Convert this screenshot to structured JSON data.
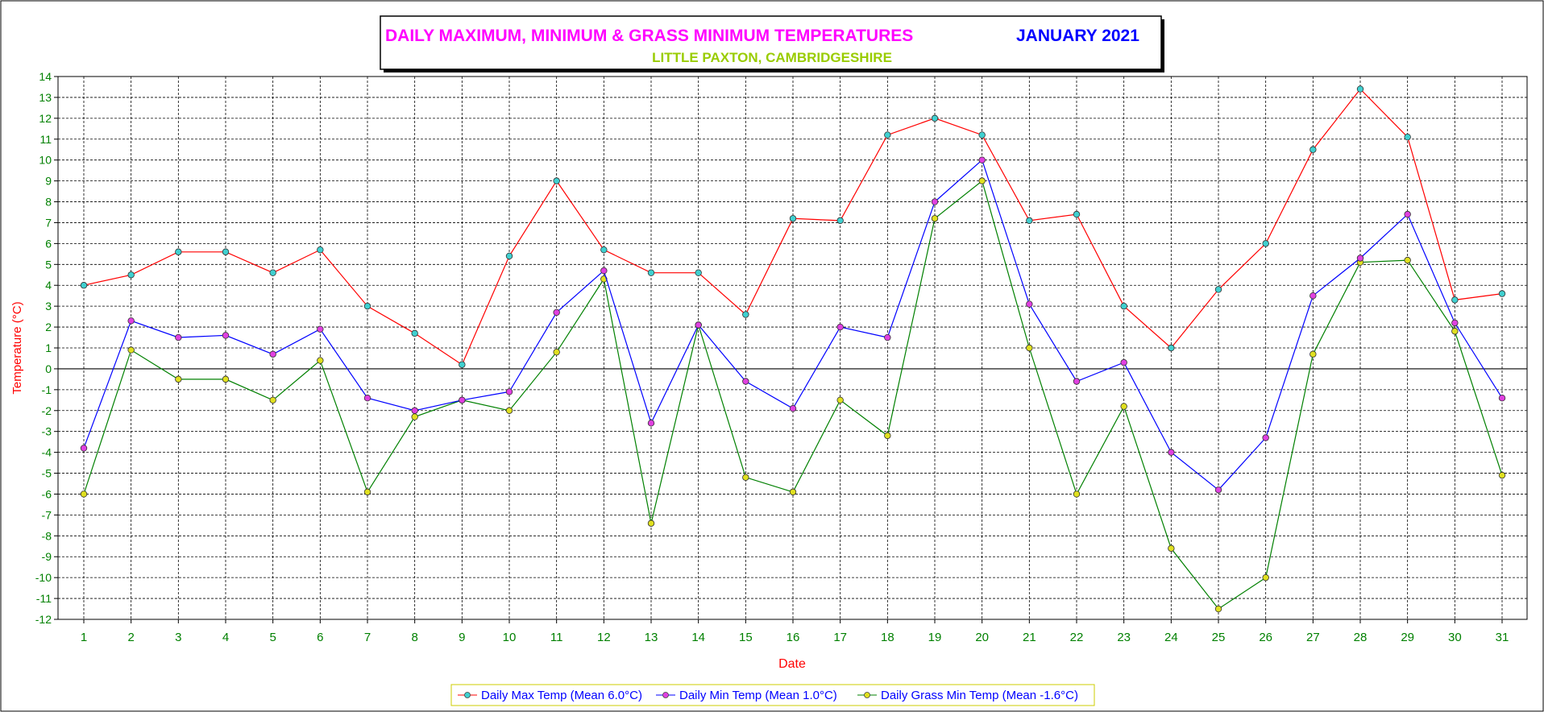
{
  "colors": {
    "max": "#ff0000",
    "min": "#0000ff",
    "grass": "#008000",
    "max_marker": "#40d0d0",
    "min_marker": "#e040e0",
    "grass_marker": "#e0e020",
    "title_main": "#ff00ff",
    "title_month": "#0000ff",
    "subtitle": "#99cc00",
    "tick_labels": "#008000",
    "axis_title": "#ff0000"
  },
  "chart_data": {
    "type": "line",
    "title": "DAILY MAXIMUM, MINIMUM & GRASS MINIMUM TEMPERATURES",
    "title_month": "JANUARY 2021",
    "subtitle": "LITTLE PAXTON, CAMBRIDGESHIRE",
    "xlabel": "Date",
    "ylabel": "Temperature (°C)",
    "ylim": [
      -12,
      14
    ],
    "grid": true,
    "legend_position": "bottom-center",
    "x": [
      1,
      2,
      3,
      4,
      5,
      6,
      7,
      8,
      9,
      10,
      11,
      12,
      13,
      14,
      15,
      16,
      17,
      18,
      19,
      20,
      21,
      22,
      23,
      24,
      25,
      26,
      27,
      28,
      29,
      30,
      31
    ],
    "series": [
      {
        "name": "Daily Max Temp (Mean 6.0°C)",
        "key": "max",
        "values": [
          4.0,
          4.5,
          5.6,
          5.6,
          4.6,
          5.7,
          3.0,
          1.7,
          0.2,
          5.4,
          9.0,
          5.7,
          4.6,
          4.6,
          2.6,
          7.2,
          7.1,
          11.2,
          12.0,
          11.2,
          7.1,
          7.4,
          3.0,
          1.0,
          3.8,
          6.0,
          10.5,
          13.4,
          11.1,
          3.3,
          3.6
        ]
      },
      {
        "name": "Daily Min Temp (Mean 1.0°C)",
        "key": "min",
        "values": [
          -3.8,
          2.3,
          1.5,
          1.6,
          0.7,
          1.9,
          -1.4,
          -2.0,
          -1.5,
          -1.1,
          2.7,
          4.7,
          -2.6,
          2.1,
          -0.6,
          -1.9,
          2.0,
          1.5,
          8.0,
          10.0,
          3.1,
          -0.6,
          0.3,
          -4.0,
          -5.8,
          -3.3,
          3.5,
          5.3,
          7.4,
          2.2,
          -1.4
        ]
      },
      {
        "name": "Daily Grass Min Temp (Mean -1.6°C)",
        "key": "grass",
        "values": [
          -6.0,
          0.9,
          -0.5,
          -0.5,
          -1.5,
          0.4,
          -5.9,
          -2.3,
          -1.5,
          -2.0,
          0.8,
          4.3,
          -7.4,
          2.1,
          -5.2,
          -5.9,
          -1.5,
          -3.2,
          7.2,
          9.0,
          1.0,
          -6.0,
          -1.8,
          -8.6,
          -11.5,
          -10.0,
          0.7,
          5.1,
          5.2,
          1.8,
          -5.1
        ]
      }
    ]
  }
}
